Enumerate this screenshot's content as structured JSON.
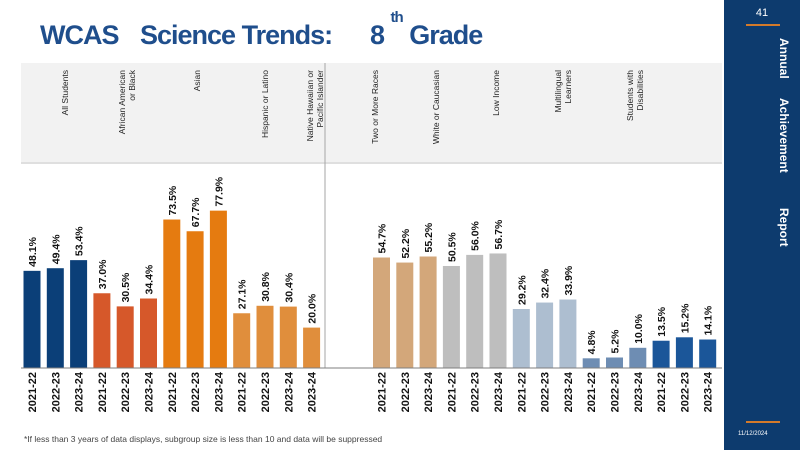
{
  "slide": {
    "title_parts": {
      "wcas": "WCAS",
      "science": "Science Trends:",
      "grade_num": "8",
      "grade_sup": "th",
      "grade_word": "Grade"
    },
    "page_number": "41",
    "sidebar_words": [
      "Annual",
      "Achievement",
      "Report"
    ],
    "date": "11/12/2024",
    "footnote": "*If less than 3 years of data displays, subgroup size is less than 10 and data will be suppressed"
  },
  "chart_data": {
    "type": "bar",
    "title": "",
    "xlabel": "",
    "ylabel": "",
    "ylim": [
      0,
      100
    ],
    "grid": false,
    "groups": [
      {
        "name": "All Students",
        "color": "#0b3f78",
        "years": [
          "2021-22",
          "2022-23",
          "2023-24"
        ],
        "values": [
          48.1,
          49.4,
          53.4
        ],
        "labels": [
          "48.1%",
          "49.4%",
          "53.4%"
        ]
      },
      {
        "name": "African American or Black",
        "color": "#d6582a",
        "years": [
          "2021-22",
          "2022-23",
          "2023-24"
        ],
        "values": [
          37.0,
          30.5,
          34.4
        ],
        "labels": [
          "37.0%",
          "30.5%",
          "34.4%"
        ]
      },
      {
        "name": "Asian",
        "color": "#e57b10",
        "years": [
          "2021-22",
          "2022-23",
          "2023-24"
        ],
        "values": [
          73.5,
          67.7,
          77.9
        ],
        "labels": [
          "73.5%",
          "67.7%",
          "77.9%"
        ]
      },
      {
        "name": "Hispanic or Latino",
        "color": "#e08e3c",
        "years": [
          "2021-22",
          "2022-23",
          "2023-24"
        ],
        "values": [
          27.1,
          30.8,
          30.4
        ],
        "labels": [
          "27.1%",
          "30.8%",
          "30.4%"
        ]
      },
      {
        "name": "Native Hawaiian or Pacific Islander",
        "color": "#e08e3c",
        "years": [
          "2023-24"
        ],
        "values": [
          20.0
        ],
        "labels": [
          "20.0%"
        ]
      },
      {
        "name": "Two or More Races",
        "color": "#d3a77a",
        "years": [
          "2021-22",
          "2022-23",
          "2023-24"
        ],
        "values": [
          54.7,
          52.2,
          55.2
        ],
        "labels": [
          "54.7%",
          "52.2%",
          "55.2%"
        ]
      },
      {
        "name": "White or Caucasian",
        "color": "#bebebe",
        "years": [
          "2021-22",
          "2022-23",
          "2023-24"
        ],
        "values": [
          50.5,
          56.0,
          56.7
        ],
        "labels": [
          "50.5%",
          "56.0%",
          "56.7%"
        ]
      },
      {
        "name": "Low Income",
        "color": "#adbed0",
        "years": [
          "2021-22",
          "2022-23",
          "2023-24"
        ],
        "values": [
          29.2,
          32.4,
          33.9
        ],
        "labels": [
          "29.2%",
          "32.4%",
          "33.9%"
        ]
      },
      {
        "name": "Multilingual Learners",
        "color": "#6e8db3",
        "years": [
          "2021-22",
          "2022-23",
          "2023-24"
        ],
        "values": [
          4.8,
          5.2,
          10.0
        ],
        "labels": [
          "4.8%",
          "5.2%",
          "10.0%"
        ]
      },
      {
        "name": "Students with Disabilities",
        "color": "#1b5699",
        "years": [
          "2021-22",
          "2022-23",
          "2023-24"
        ],
        "values": [
          13.5,
          15.2,
          14.1
        ],
        "labels": [
          "13.5%",
          "15.2%",
          "14.1%"
        ]
      }
    ]
  }
}
